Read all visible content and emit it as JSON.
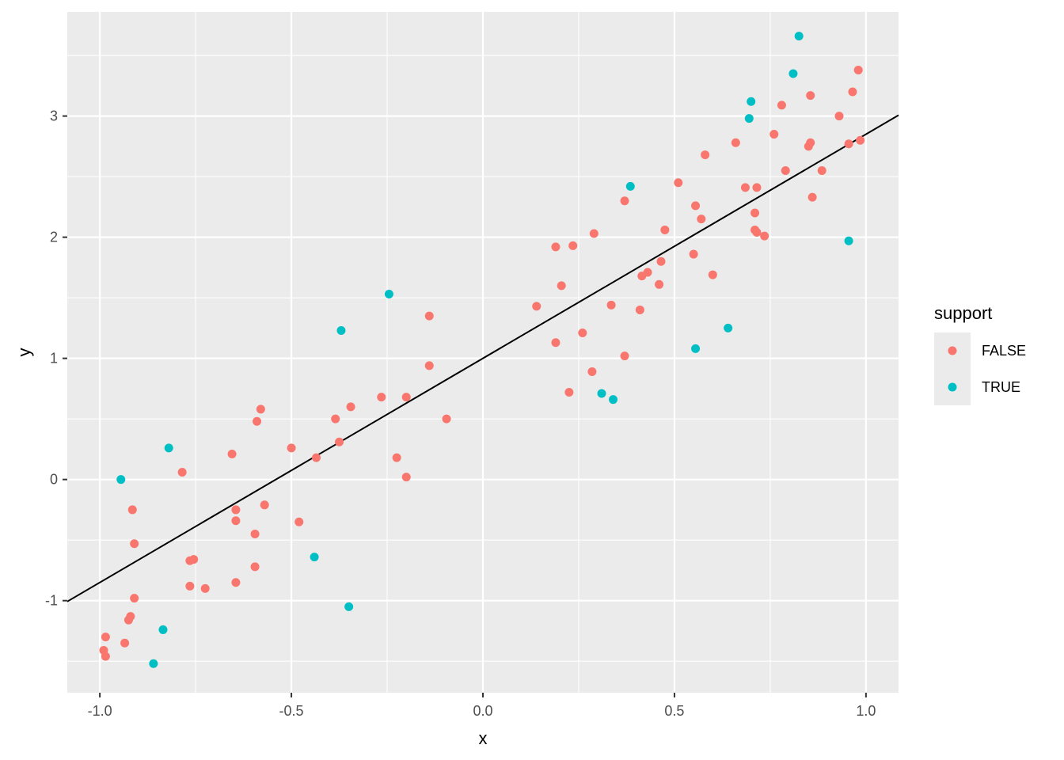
{
  "chart_data": {
    "type": "scatter",
    "title": "",
    "xlabel": "x",
    "ylabel": "y",
    "xlim": [
      -1.085,
      1.085
    ],
    "ylim": [
      -1.76,
      3.86
    ],
    "x_ticks": [
      -1.0,
      -0.5,
      0.0,
      0.5,
      1.0
    ],
    "x_tick_labels": [
      "-1.0",
      "-0.5",
      "0.0",
      "0.5",
      "1.0"
    ],
    "y_ticks": [
      -1,
      0,
      1,
      2,
      3
    ],
    "y_tick_labels": [
      "-1",
      "0",
      "1",
      "2",
      "3"
    ],
    "grid": true,
    "legend": {
      "title": "support",
      "position": "right",
      "entries": [
        {
          "label": "FALSE",
          "color": "#F8766D"
        },
        {
          "label": "TRUE",
          "color": "#00BFC4"
        }
      ]
    },
    "reference_line": {
      "intercept": 1.0,
      "slope": 1.85
    },
    "series": [
      {
        "name": "FALSE",
        "color": "#F8766D",
        "points": [
          [
            -0.99,
            -1.41
          ],
          [
            -0.985,
            -1.3
          ],
          [
            -0.985,
            -1.46
          ],
          [
            -0.935,
            -1.35
          ],
          [
            -0.925,
            -1.16
          ],
          [
            -0.92,
            -1.13
          ],
          [
            -0.91,
            -0.98
          ],
          [
            -0.91,
            -0.53
          ],
          [
            -0.915,
            -0.25
          ],
          [
            -0.785,
            0.06
          ],
          [
            -0.765,
            -0.88
          ],
          [
            -0.765,
            -0.67
          ],
          [
            -0.755,
            -0.66
          ],
          [
            -0.725,
            -0.9
          ],
          [
            -0.655,
            0.21
          ],
          [
            -0.645,
            -0.85
          ],
          [
            -0.645,
            -0.34
          ],
          [
            -0.645,
            -0.25
          ],
          [
            -0.595,
            -0.72
          ],
          [
            -0.595,
            -0.45
          ],
          [
            -0.59,
            0.48
          ],
          [
            -0.58,
            0.58
          ],
          [
            -0.57,
            -0.21
          ],
          [
            -0.5,
            0.26
          ],
          [
            -0.48,
            -0.35
          ],
          [
            -0.435,
            0.18
          ],
          [
            -0.385,
            0.5
          ],
          [
            -0.375,
            0.31
          ],
          [
            -0.345,
            0.6
          ],
          [
            -0.265,
            0.68
          ],
          [
            -0.225,
            0.18
          ],
          [
            -0.2,
            0.02
          ],
          [
            -0.2,
            0.68
          ],
          [
            -0.14,
            0.94
          ],
          [
            -0.14,
            1.35
          ],
          [
            -0.095,
            0.5
          ],
          [
            0.14,
            1.43
          ],
          [
            0.19,
            1.13
          ],
          [
            0.19,
            1.92
          ],
          [
            0.205,
            1.6
          ],
          [
            0.225,
            0.72
          ],
          [
            0.235,
            1.93
          ],
          [
            0.26,
            1.21
          ],
          [
            0.285,
            0.89
          ],
          [
            0.29,
            2.03
          ],
          [
            0.335,
            1.44
          ],
          [
            0.37,
            1.02
          ],
          [
            0.37,
            2.3
          ],
          [
            0.41,
            1.4
          ],
          [
            0.415,
            1.68
          ],
          [
            0.43,
            1.71
          ],
          [
            0.46,
            1.61
          ],
          [
            0.465,
            1.8
          ],
          [
            0.475,
            2.06
          ],
          [
            0.51,
            2.45
          ],
          [
            0.55,
            1.86
          ],
          [
            0.555,
            2.26
          ],
          [
            0.57,
            2.15
          ],
          [
            0.58,
            2.68
          ],
          [
            0.6,
            1.69
          ],
          [
            0.66,
            2.78
          ],
          [
            0.685,
            2.41
          ],
          [
            0.71,
            2.2
          ],
          [
            0.71,
            2.06
          ],
          [
            0.715,
            2.04
          ],
          [
            0.715,
            2.41
          ],
          [
            0.735,
            2.01
          ],
          [
            0.76,
            2.85
          ],
          [
            0.78,
            3.09
          ],
          [
            0.79,
            2.55
          ],
          [
            0.85,
            2.75
          ],
          [
            0.855,
            2.78
          ],
          [
            0.855,
            3.17
          ],
          [
            0.86,
            2.33
          ],
          [
            0.885,
            2.55
          ],
          [
            0.93,
            3.0
          ],
          [
            0.955,
            2.77
          ],
          [
            0.965,
            3.2
          ],
          [
            0.98,
            3.38
          ],
          [
            0.985,
            2.8
          ]
        ]
      },
      {
        "name": "TRUE",
        "color": "#00BFC4",
        "points": [
          [
            -0.945,
            0.0
          ],
          [
            -0.86,
            -1.52
          ],
          [
            -0.835,
            -1.24
          ],
          [
            -0.82,
            0.26
          ],
          [
            -0.44,
            -0.64
          ],
          [
            -0.37,
            1.23
          ],
          [
            -0.35,
            -1.05
          ],
          [
            -0.245,
            1.53
          ],
          [
            0.31,
            0.71
          ],
          [
            0.34,
            0.66
          ],
          [
            0.385,
            2.42
          ],
          [
            0.555,
            1.08
          ],
          [
            0.64,
            1.25
          ],
          [
            0.695,
            2.98
          ],
          [
            0.7,
            3.12
          ],
          [
            0.81,
            3.35
          ],
          [
            0.825,
            3.66
          ],
          [
            0.955,
            1.97
          ]
        ]
      }
    ]
  }
}
